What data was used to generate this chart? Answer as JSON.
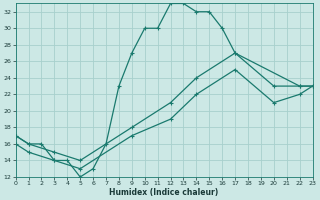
{
  "xlabel": "Humidex (Indice chaleur)",
  "bg_color": "#cce8e5",
  "grid_color": "#a8d0cd",
  "line_color": "#1a7a6e",
  "xlim": [
    0,
    23
  ],
  "ylim": [
    12,
    33
  ],
  "yticks": [
    12,
    14,
    16,
    18,
    20,
    22,
    24,
    26,
    28,
    30,
    32
  ],
  "xticks": [
    0,
    1,
    2,
    3,
    4,
    5,
    6,
    7,
    8,
    9,
    10,
    11,
    12,
    13,
    14,
    15,
    16,
    17,
    18,
    19,
    20,
    21,
    22,
    23
  ],
  "line1_x": [
    0,
    1,
    2,
    3,
    4,
    5,
    6,
    7,
    8,
    9,
    10,
    11,
    12,
    13,
    14,
    15,
    16,
    17,
    22,
    23
  ],
  "line1_y": [
    17,
    16,
    16,
    14,
    14,
    12,
    13,
    16,
    23,
    27,
    30,
    30,
    33,
    33,
    32,
    32,
    30,
    27,
    23,
    23
  ],
  "line2_x": [
    0,
    1,
    3,
    5,
    9,
    12,
    14,
    17,
    20,
    22,
    23
  ],
  "line2_y": [
    17,
    16,
    15,
    14,
    18,
    21,
    24,
    27,
    23,
    23,
    23
  ],
  "line3_x": [
    0,
    1,
    3,
    5,
    9,
    12,
    14,
    17,
    20,
    22,
    23
  ],
  "line3_y": [
    16,
    15,
    14,
    13,
    17,
    19,
    22,
    25,
    21,
    22,
    23
  ]
}
